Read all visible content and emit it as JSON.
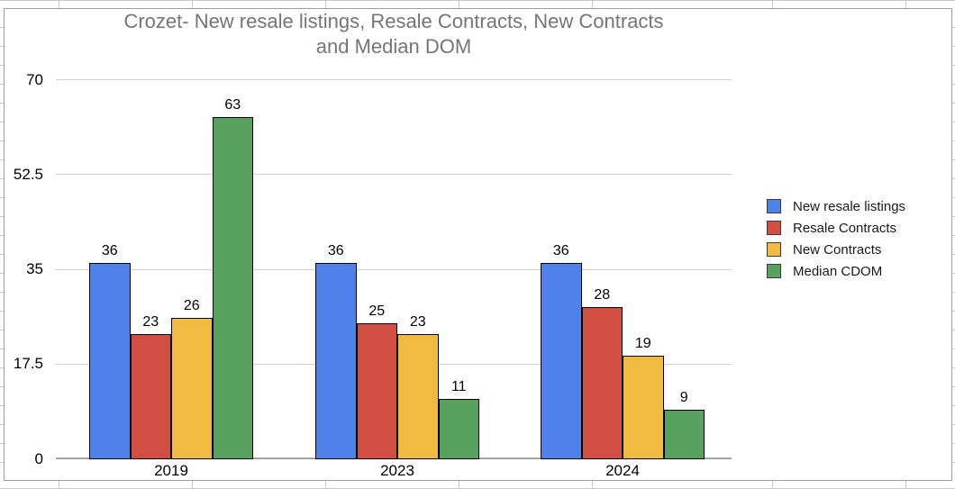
{
  "chart_data": {
    "type": "bar",
    "title": "Crozet- New resale listings, Resale Contracts, New Contracts and Median DOM",
    "title_lines": [
      "Crozet- New resale listings, Resale Contracts, New Contracts",
      "and Median DOM"
    ],
    "categories": [
      "2019",
      "2023",
      "2024"
    ],
    "series": [
      {
        "name": "New resale listings",
        "color": "#4e81e9",
        "values": [
          36,
          36,
          36
        ]
      },
      {
        "name": "Resale Contracts",
        "color": "#d14f42",
        "values": [
          23,
          25,
          28
        ]
      },
      {
        "name": "New Contracts",
        "color": "#f0bb40",
        "values": [
          26,
          23,
          19
        ]
      },
      {
        "name": "Median CDOM",
        "color": "#58a15e",
        "values": [
          63,
          11,
          9
        ]
      }
    ],
    "ylim": [
      0,
      70
    ],
    "yticks": [
      0,
      17.5,
      35,
      52.5,
      70
    ],
    "ytick_labels": [
      "0",
      "17.5",
      "35",
      "52.5",
      "70"
    ],
    "grid": true,
    "bar_value_labels": true,
    "legend_position": "right"
  },
  "colors": {
    "title_text": "#757575",
    "axis_text": "#000000",
    "gridline": "#cfcfcf",
    "baseline": "#a3a3a3",
    "chart_frame_border": "#9e9e9e",
    "sheet_gridline": "#c9c9c9"
  }
}
